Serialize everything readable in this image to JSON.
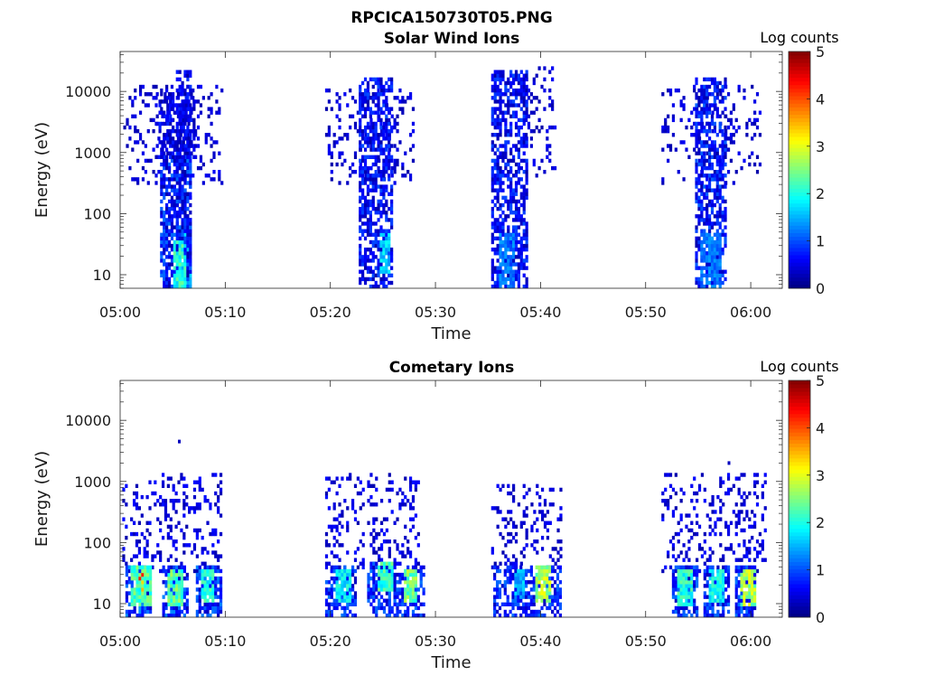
{
  "figure_title": "RPCICA150730T05.PNG",
  "chart_data": [
    {
      "type": "heatmap",
      "title": "Solar Wind Ions",
      "xlabel": "Time",
      "ylabel": "Energy (eV)",
      "y_scale": "log",
      "ylim": [
        6,
        45000
      ],
      "y_ticks": [
        10,
        100,
        1000,
        10000
      ],
      "y_tick_labels": [
        "10",
        "100",
        "1000",
        "10000"
      ],
      "x_range": [
        "05:00",
        "06:03"
      ],
      "x_ticks": [
        "05:00",
        "05:10",
        "05:20",
        "05:30",
        "05:40",
        "05:50",
        "06:00"
      ],
      "colorbar": {
        "label": "Log counts",
        "min": 0,
        "max": 5,
        "ticks": [
          "0",
          "1",
          "2",
          "3",
          "4",
          "5"
        ],
        "colormap": "jet"
      },
      "clusters": [
        {
          "x": [
            5.3,
            6.7
          ],
          "y": [
            6,
            20000
          ],
          "density": 0.55,
          "value": [
            0.2,
            0.9
          ],
          "hot": [
            [
              5.4,
              6.6,
              6,
              40,
              1.6
            ]
          ]
        },
        {
          "x": [
            3.8,
            6.8
          ],
          "y": [
            6,
            1000
          ],
          "density": 0.72,
          "value": [
            0.2,
            1.2
          ],
          "hot": [
            [
              5.0,
              6.2,
              6,
              30,
              2.2
            ]
          ]
        },
        {
          "x": [
            3.4,
            7.0
          ],
          "y": [
            900,
            9000
          ],
          "density": 0.55,
          "value": [
            0.2,
            0.8
          ],
          "hot": []
        },
        {
          "x": [
            0.3,
            9.8
          ],
          "y": [
            300,
            12000
          ],
          "density": 0.18,
          "value": [
            0.2,
            0.6
          ],
          "hot": []
        },
        {
          "x": [
            19.5,
            28.0
          ],
          "y": [
            300,
            12000
          ],
          "density": 0.17,
          "value": [
            0.2,
            0.6
          ],
          "hot": []
        },
        {
          "x": [
            22.7,
            25.8
          ],
          "y": [
            6,
            15000
          ],
          "density": 0.6,
          "value": [
            0.2,
            1.0
          ],
          "hot": [
            [
              24.5,
              25.5,
              12,
              40,
              1.8
            ]
          ]
        },
        {
          "x": [
            35.3,
            38.8
          ],
          "y": [
            6,
            20000
          ],
          "density": 0.6,
          "value": [
            0.2,
            1.0
          ],
          "hot": [
            [
              36.0,
              37.5,
              6,
              40,
              1.3
            ]
          ]
        },
        {
          "x": [
            38.5,
            41.5
          ],
          "y": [
            400,
            25000
          ],
          "density": 0.16,
          "value": [
            0.2,
            0.6
          ],
          "hot": []
        },
        {
          "x": [
            51.5,
            61.0
          ],
          "y": [
            300,
            12000
          ],
          "density": 0.17,
          "value": [
            0.2,
            0.6
          ],
          "hot": []
        },
        {
          "x": [
            54.7,
            57.6
          ],
          "y": [
            6,
            15000
          ],
          "density": 0.6,
          "value": [
            0.2,
            1.1
          ],
          "hot": [
            [
              55.0,
              57.0,
              6,
              40,
              1.3
            ]
          ]
        }
      ]
    },
    {
      "type": "heatmap",
      "title": "Cometary Ions",
      "xlabel": "Time",
      "ylabel": "Energy (eV)",
      "y_scale": "log",
      "ylim": [
        6,
        45000
      ],
      "y_ticks": [
        10,
        100,
        1000,
        10000
      ],
      "y_tick_labels": [
        "10",
        "100",
        "1000",
        "10000"
      ],
      "x_range": [
        "05:00",
        "06:03"
      ],
      "x_ticks": [
        "05:00",
        "05:10",
        "05:20",
        "05:30",
        "05:40",
        "05:50",
        "06:00"
      ],
      "colorbar": {
        "label": "Log counts",
        "min": 0,
        "max": 5,
        "ticks": [
          "0",
          "1",
          "2",
          "3",
          "4",
          "5"
        ],
        "colormap": "jet"
      },
      "clusters": [
        {
          "x": [
            0.2,
            9.5
          ],
          "y": [
            35,
            1200
          ],
          "density": 0.22,
          "value": [
            0.2,
            0.7
          ],
          "hot": []
        },
        {
          "x": [
            0.5,
            3.0
          ],
          "y": [
            6,
            40
          ],
          "density": 0.75,
          "value": [
            0.3,
            1.4
          ],
          "hot": [
            [
              1.4,
              2.4,
              18,
              40,
              3.9
            ],
            [
              1.0,
              2.8,
              10,
              40,
              2.4
            ]
          ]
        },
        {
          "x": [
            4.0,
            6.5
          ],
          "y": [
            6,
            40
          ],
          "density": 0.72,
          "value": [
            0.3,
            1.3
          ],
          "hot": [
            [
              4.5,
              5.8,
              10,
              30,
              2.5
            ]
          ]
        },
        {
          "x": [
            7.2,
            9.5
          ],
          "y": [
            6,
            40
          ],
          "density": 0.72,
          "value": [
            0.3,
            1.3
          ],
          "hot": [
            [
              7.5,
              8.8,
              12,
              30,
              2.2
            ]
          ]
        },
        {
          "x": [
            19.5,
            28.5
          ],
          "y": [
            35,
            1200
          ],
          "density": 0.2,
          "value": [
            0.2,
            0.7
          ],
          "hot": []
        },
        {
          "x": [
            19.5,
            22.5
          ],
          "y": [
            6,
            40
          ],
          "density": 0.6,
          "value": [
            0.3,
            1.2
          ],
          "hot": [
            [
              20.5,
              22.0,
              12,
              30,
              2.0
            ]
          ]
        },
        {
          "x": [
            23.5,
            26.5
          ],
          "y": [
            6,
            45
          ],
          "density": 0.65,
          "value": [
            0.3,
            1.2
          ],
          "hot": [
            [
              24.5,
              26.0,
              18,
              45,
              2.3
            ]
          ]
        },
        {
          "x": [
            26.5,
            28.8
          ],
          "y": [
            6,
            40
          ],
          "density": 0.62,
          "value": [
            0.3,
            1.2
          ],
          "hot": [
            [
              26.8,
              28.2,
              12,
              30,
              2.6
            ]
          ]
        },
        {
          "x": [
            35.3,
            42.0
          ],
          "y": [
            35,
            900
          ],
          "density": 0.18,
          "value": [
            0.2,
            0.6
          ],
          "hot": []
        },
        {
          "x": [
            35.5,
            42.0
          ],
          "y": [
            6,
            40
          ],
          "density": 0.55,
          "value": [
            0.3,
            1.2
          ],
          "hot": [
            [
              39.5,
              41.0,
              12,
              35,
              2.9
            ],
            [
              37.5,
              38.5,
              14,
              30,
              1.6
            ]
          ]
        },
        {
          "x": [
            51.5,
            61.3
          ],
          "y": [
            35,
            1200
          ],
          "density": 0.2,
          "value": [
            0.2,
            0.7
          ],
          "hot": []
        },
        {
          "x": [
            52.5,
            55.0
          ],
          "y": [
            6,
            40
          ],
          "density": 0.7,
          "value": [
            0.3,
            1.2
          ],
          "hot": [
            [
              53.0,
              54.3,
              10,
              30,
              2.2
            ]
          ]
        },
        {
          "x": [
            55.5,
            58.0
          ],
          "y": [
            6,
            40
          ],
          "density": 0.62,
          "value": [
            0.3,
            1.2
          ],
          "hot": [
            [
              56.0,
              57.3,
              12,
              30,
              2.0
            ]
          ]
        },
        {
          "x": [
            58.5,
            60.5
          ],
          "y": [
            6,
            40
          ],
          "density": 0.75,
          "value": [
            0.3,
            1.3
          ],
          "hot": [
            [
              59.0,
              60.3,
              10,
              30,
              2.9
            ]
          ]
        }
      ],
      "outliers": [
        [
          5.5,
          4500,
          0.3
        ],
        [
          57.8,
          2000,
          0.3
        ]
      ]
    }
  ]
}
